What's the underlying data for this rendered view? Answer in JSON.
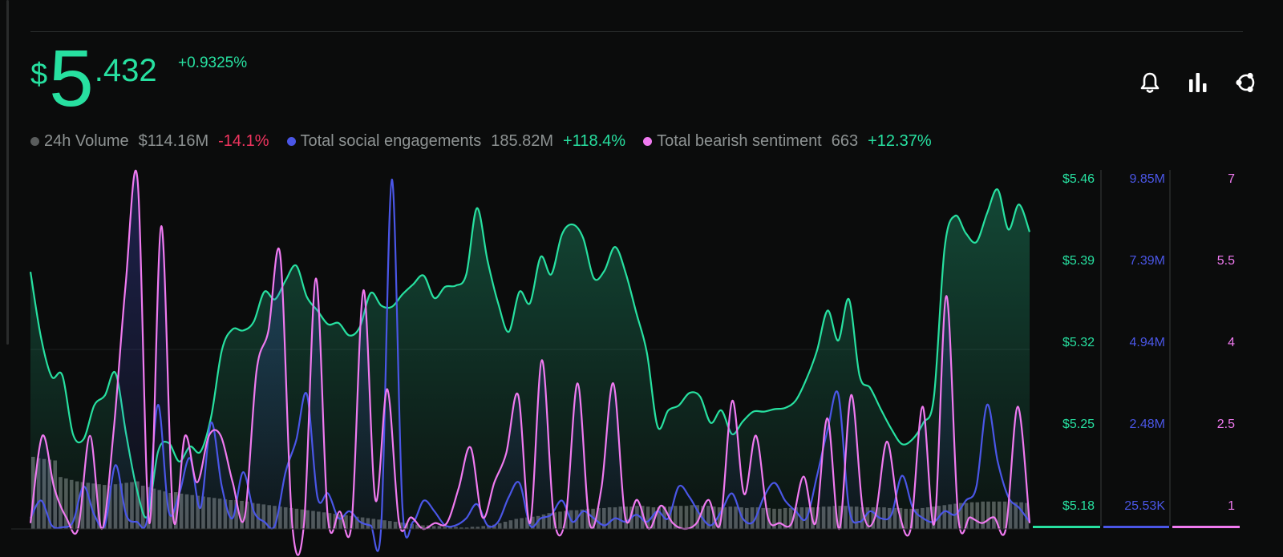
{
  "header": {
    "price_currency": "$",
    "price_integer": "5",
    "price_decimal": ".432",
    "price_change": "+0.9325%"
  },
  "toolbar": {
    "icons": [
      "bell-icon",
      "bar-chart-icon",
      "share-icon"
    ]
  },
  "legend": [
    {
      "label": "24h Volume",
      "value": "$114.16M",
      "change": "-14.1%",
      "color": "#5a5d5d",
      "change_color": "#f0345f"
    },
    {
      "label": "Total social engagements",
      "value": "185.82M",
      "change": "+118.4%",
      "color": "#4a56e6",
      "change_color": "#27e0a0"
    },
    {
      "label": "Total bearish sentiment",
      "value": "663",
      "change": "+12.37%",
      "color": "#f07af0",
      "change_color": "#27e0a0"
    }
  ],
  "colors": {
    "price": "#27e0a0",
    "engagement": "#4a56e6",
    "bearish": "#f07af0",
    "volume": "#6b6b6b",
    "background": "#0b0c0c"
  },
  "chart_data": {
    "type": "line",
    "axes": [
      {
        "series": "price",
        "ticks": [
          "$5.46",
          "$5.39",
          "$5.32",
          "$5.25",
          "$5.18"
        ],
        "ylim": [
          5.18,
          5.46
        ]
      },
      {
        "series": "engagement",
        "ticks": [
          "9.85M",
          "7.39M",
          "4.94M",
          "2.48M",
          "25.53K"
        ],
        "ylim": [
          0.02553,
          9.85
        ]
      },
      {
        "series": "bearish",
        "ticks": [
          "7",
          "5.5",
          "4",
          "2.5",
          "1"
        ],
        "ylim": [
          1,
          7
        ]
      }
    ],
    "series": [
      {
        "name": "price",
        "values": [
          5.386,
          5.333,
          5.302,
          5.303,
          5.256,
          5.252,
          5.279,
          5.287,
          5.305,
          5.256,
          5.212,
          5.19,
          5.242,
          5.249,
          5.234,
          5.246,
          5.242,
          5.27,
          5.323,
          5.34,
          5.339,
          5.346,
          5.37,
          5.364,
          5.379,
          5.391,
          5.366,
          5.355,
          5.344,
          5.345,
          5.335,
          5.342,
          5.369,
          5.359,
          5.358,
          5.368,
          5.376,
          5.383,
          5.365,
          5.374,
          5.375,
          5.384,
          5.437,
          5.395,
          5.361,
          5.338,
          5.37,
          5.361,
          5.398,
          5.384,
          5.416,
          5.424,
          5.413,
          5.381,
          5.387,
          5.406,
          5.385,
          5.353,
          5.321,
          5.262,
          5.275,
          5.279,
          5.289,
          5.286,
          5.265,
          5.275,
          5.256,
          5.266,
          5.274,
          5.274,
          5.276,
          5.277,
          5.283,
          5.3,
          5.323,
          5.355,
          5.331,
          5.364,
          5.303,
          5.293,
          5.276,
          5.26,
          5.248,
          5.252,
          5.265,
          5.286,
          5.405,
          5.431,
          5.417,
          5.41,
          5.433,
          5.452,
          5.42,
          5.44,
          5.418
        ]
      },
      {
        "name": "engagement",
        "values": [
          0.3,
          0.8,
          0.1,
          0.05,
          0.2,
          1.2,
          0.4,
          0.1,
          1.8,
          0.4,
          0.2,
          0.3,
          3.5,
          0.5,
          1.0,
          2.0,
          0.6,
          3.0,
          1.2,
          0.3,
          1.6,
          0.5,
          0.2,
          0.1,
          1.6,
          2.5,
          3.8,
          0.9,
          1.0,
          0.3,
          0.5,
          0.2,
          0.1,
          0.1,
          9.85,
          0.6,
          0.2,
          0.8,
          0.5,
          0.1,
          0.1,
          0.3,
          0.7,
          0.1,
          0.2,
          0.9,
          1.3,
          0.1,
          0.3,
          0.4,
          0.8,
          0.2,
          0.5,
          0.3,
          0.1,
          0.3,
          0.2,
          0.4,
          0.2,
          0.5,
          0.3,
          1.2,
          0.9,
          0.4,
          0.1,
          0.5,
          1.0,
          0.3,
          0.2,
          0.9,
          1.3,
          0.8,
          0.5,
          0.3,
          1.5,
          2.8,
          3.8,
          0.6,
          0.2,
          0.5,
          0.3,
          0.4,
          1.5,
          0.6,
          0.3,
          0.2,
          0.5,
          0.4,
          0.8,
          1.2,
          3.5,
          1.9,
          0.9,
          0.6,
          0.2
        ]
      },
      {
        "name": "bearish",
        "values": [
          1.1,
          2.6,
          1.7,
          1.2,
          1.0,
          2.6,
          1.0,
          2.7,
          5.2,
          7.0,
          1.1,
          6.2,
          1.2,
          2.6,
          1.8,
          2.6,
          2.6,
          1.8,
          1.2,
          3.7,
          4.4,
          5.7,
          1.1,
          1.1,
          5.3,
          1.2,
          1.3,
          1.1,
          5.1,
          1.5,
          3.4,
          1.1,
          1.2,
          1.0,
          1.1,
          1.1,
          1.7,
          2.4,
          1.2,
          1.8,
          2.3,
          3.3,
          1.1,
          3.9,
          1.2,
          1.2,
          3.5,
          1.1,
          1.7,
          3.5,
          1.2,
          1.5,
          1.0,
          1.4,
          1.1,
          1.0,
          1.1,
          1.5,
          1.1,
          3.2,
          1.6,
          2.6,
          1.2,
          1.1,
          1.1,
          1.9,
          1.1,
          2.9,
          1.0,
          3.3,
          1.3,
          1.2,
          2.5,
          1.3,
          1.0,
          3.1,
          1.1,
          5.0,
          1.2,
          1.2,
          1.1,
          1.2,
          1.0,
          3.1,
          1.1
        ]
      },
      {
        "name": "volume",
        "values": [
          100,
          98,
          97,
          96,
          95,
          72,
          70,
          68,
          66,
          65,
          64,
          63,
          62,
          61,
          60,
          62,
          63,
          64,
          65,
          66,
          60,
          58,
          56,
          54,
          52,
          50,
          51,
          49,
          48,
          47,
          46,
          45,
          44,
          43,
          42,
          41,
          40,
          40,
          39,
          38,
          36,
          35,
          34,
          33,
          32,
          31,
          30,
          29,
          28,
          27,
          26,
          25,
          24,
          23,
          22,
          21,
          20,
          19,
          18,
          17,
          16,
          15,
          14,
          13,
          12,
          11,
          10,
          9,
          8,
          7,
          6,
          5,
          5,
          4,
          4,
          3,
          3,
          3,
          2,
          2,
          3,
          3,
          4,
          5,
          6,
          8,
          10,
          12,
          14,
          15,
          16,
          17,
          18,
          20,
          22,
          23,
          24,
          25,
          26,
          26,
          27,
          28,
          28,
          29,
          29,
          30,
          30,
          31,
          31,
          31,
          32,
          32,
          31,
          30,
          30,
          31,
          31,
          32,
          32,
          32,
          33,
          33,
          32,
          32,
          31,
          30,
          30,
          31,
          31,
          30,
          29,
          30,
          30,
          29,
          29,
          28,
          28,
          29,
          29,
          30,
          30,
          30,
          30,
          30,
          31,
          31,
          32,
          32,
          32,
          31,
          31,
          30,
          30,
          30,
          30,
          30,
          29,
          29,
          29,
          28,
          28,
          28,
          29,
          30,
          31,
          32,
          33,
          34,
          35,
          36,
          36,
          37,
          37,
          38,
          38,
          38,
          38,
          38,
          38,
          37,
          37,
          36
        ]
      }
    ]
  }
}
